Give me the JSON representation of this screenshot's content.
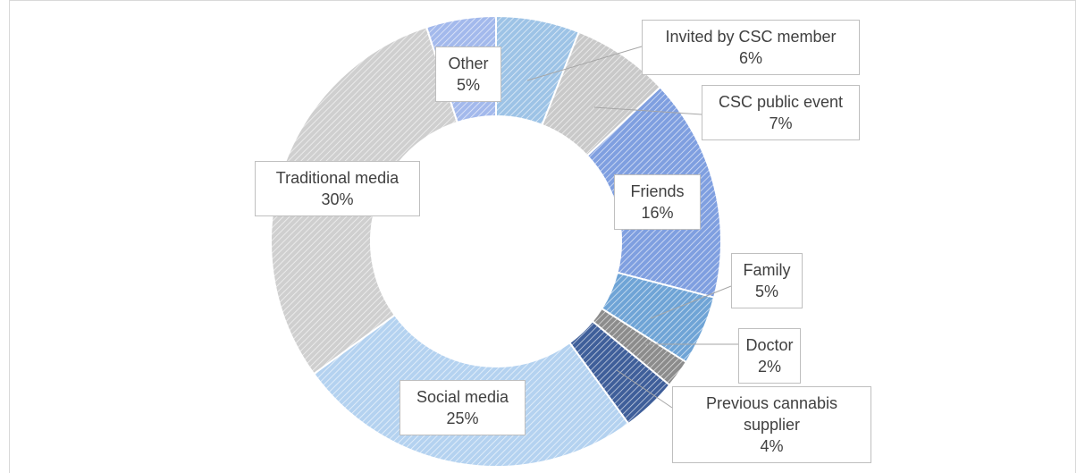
{
  "chart_data": {
    "type": "donut",
    "categories": [
      "Invited by CSC member",
      "CSC public event",
      "Friends",
      "Family",
      "Doctor",
      "Previous cannabis supplier",
      "Social media",
      "Traditional media",
      "Other"
    ],
    "values": [
      6,
      7,
      16,
      5,
      2,
      4,
      25,
      30,
      5
    ],
    "value_labels": [
      "6%",
      "7%",
      "16%",
      "5%",
      "2%",
      "4%",
      "25%",
      "30%",
      "5%"
    ],
    "colors": [
      "#9dc3e6",
      "#c9c9c9",
      "#7f9fe0",
      "#6fa4d6",
      "#8c8c8c",
      "#3f5f9a",
      "#b4d2f0",
      "#cfcfcf",
      "#a3b9ec"
    ]
  }
}
